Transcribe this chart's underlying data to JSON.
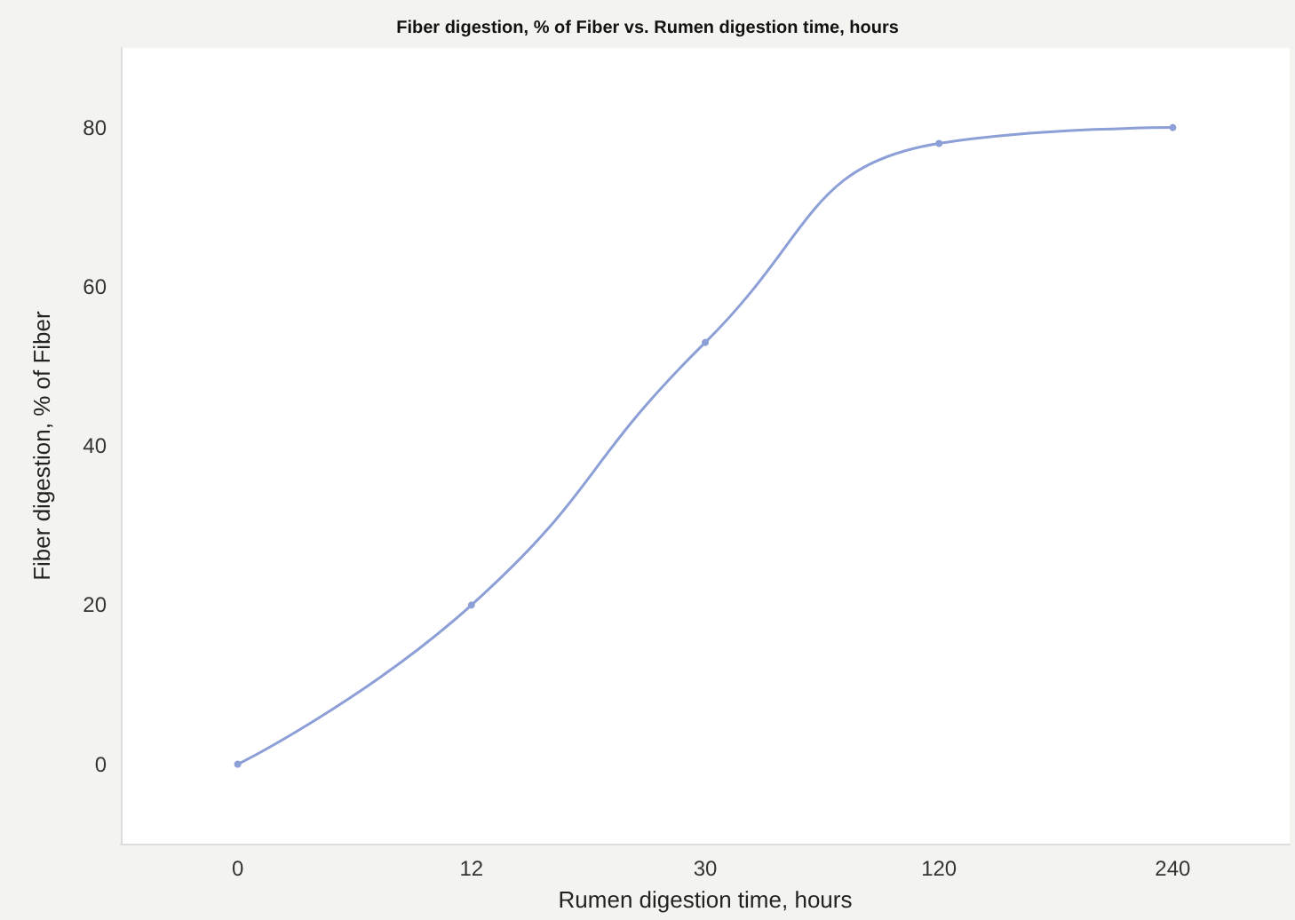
{
  "chart_data": {
    "type": "line",
    "title": "Fiber digestion, % of Fiber vs. Rumen digestion time, hours",
    "xlabel": "Rumen digestion time, hours",
    "ylabel": "Fiber digestion, % of Fiber",
    "categories": [
      "0",
      "12",
      "30",
      "120",
      "240"
    ],
    "series": [
      {
        "color": "#8c9fd6",
        "values": [
          0,
          20,
          53,
          78,
          80
        ]
      }
    ],
    "ylim": [
      -10,
      90
    ],
    "yticks": [
      0,
      20,
      40,
      60,
      80
    ],
    "marker": "circle",
    "line_style": "solid"
  }
}
